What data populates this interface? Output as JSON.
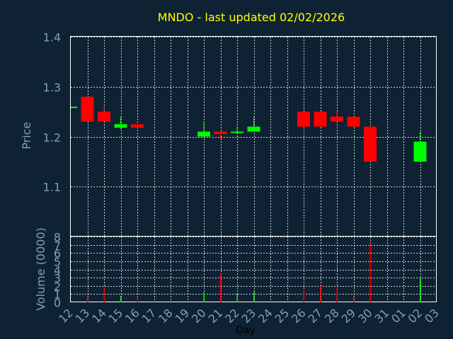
{
  "chart_data": [
    {
      "type": "candlestick",
      "title": "MNDO - last updated 02/02/2026",
      "xlabel": "",
      "ylabel": "Price",
      "ylim": [
        1.0,
        1.4
      ],
      "yticks": [
        "1.1",
        "1.2",
        "1.3",
        "1.4"
      ],
      "ytick_values": [
        1.1,
        1.2,
        1.3,
        1.4
      ],
      "grid": true,
      "title_color": "#ffff00",
      "label_color": "#7f9fbf",
      "up_color": "#00ff00",
      "down_color": "#ff0000",
      "candles": [
        {
          "slot": 0,
          "open": 1.26,
          "close": 1.26,
          "high": 1.26,
          "low": 1.26
        },
        {
          "slot": 1,
          "open": 1.28,
          "close": 1.23,
          "high": 1.28,
          "low": 1.23
        },
        {
          "slot": 2,
          "open": 1.25,
          "close": 1.23,
          "high": 1.26,
          "low": 1.23
        },
        {
          "slot": 3,
          "open": 1.218,
          "close": 1.225,
          "high": 1.24,
          "low": 1.215
        },
        {
          "slot": 4,
          "open": 1.225,
          "close": 1.218,
          "high": 1.225,
          "low": 1.21
        },
        {
          "slot": 8,
          "open": 1.2,
          "close": 1.21,
          "high": 1.23,
          "low": 1.2
        },
        {
          "slot": 9,
          "open": 1.21,
          "close": 1.205,
          "high": 1.21,
          "low": 1.195
        },
        {
          "slot": 10,
          "open": 1.208,
          "close": 1.21,
          "high": 1.22,
          "low": 1.205
        },
        {
          "slot": 11,
          "open": 1.21,
          "close": 1.22,
          "high": 1.24,
          "low": 1.21
        },
        {
          "slot": 14,
          "open": 1.25,
          "close": 1.22,
          "high": 1.25,
          "low": 1.22
        },
        {
          "slot": 15,
          "open": 1.25,
          "close": 1.22,
          "high": 1.25,
          "low": 1.22
        },
        {
          "slot": 16,
          "open": 1.24,
          "close": 1.23,
          "high": 1.25,
          "low": 1.23
        },
        {
          "slot": 17,
          "open": 1.24,
          "close": 1.22,
          "high": 1.24,
          "low": 1.22
        },
        {
          "slot": 18,
          "open": 1.22,
          "close": 1.15,
          "high": 1.22,
          "low": 1.15
        },
        {
          "slot": 21,
          "open": 1.15,
          "close": 1.19,
          "high": 1.21,
          "low": 1.15
        }
      ]
    },
    {
      "type": "bar",
      "xlabel": "Day",
      "ylabel": "Volume (0000)",
      "ylim": [
        0,
        8
      ],
      "yticks": [
        "0",
        "1",
        "2",
        "3",
        "4",
        "5",
        "6",
        "7",
        "8"
      ],
      "ytick_values": [
        0,
        1,
        2,
        3,
        4,
        5,
        6,
        7,
        8
      ],
      "grid": true,
      "categories": [
        "12",
        "13",
        "14",
        "15",
        "16",
        "17",
        "18",
        "19",
        "20",
        "21",
        "22",
        "23",
        "24",
        "25",
        "26",
        "27",
        "28",
        "29",
        "30",
        "31",
        "01",
        "02",
        "03"
      ],
      "bars": [
        {
          "slot": 1,
          "value": 1.0,
          "color": "#ff0000"
        },
        {
          "slot": 2,
          "value": 1.8,
          "color": "#ff0000"
        },
        {
          "slot": 3,
          "value": 0.8,
          "color": "#00ff00"
        },
        {
          "slot": 4,
          "value": 0.7,
          "color": "#ff0000"
        },
        {
          "slot": 8,
          "value": 1.2,
          "color": "#00ff00"
        },
        {
          "slot": 9,
          "value": 3.5,
          "color": "#ff0000"
        },
        {
          "slot": 10,
          "value": 1.0,
          "color": "#00ff00"
        },
        {
          "slot": 11,
          "value": 1.3,
          "color": "#00ff00"
        },
        {
          "slot": 14,
          "value": 1.5,
          "color": "#ff0000"
        },
        {
          "slot": 15,
          "value": 2.0,
          "color": "#ff0000"
        },
        {
          "slot": 16,
          "value": 1.8,
          "color": "#ff0000"
        },
        {
          "slot": 17,
          "value": 1.0,
          "color": "#ff0000"
        },
        {
          "slot": 18,
          "value": 7.2,
          "color": "#ff0000"
        },
        {
          "slot": 21,
          "value": 3.0,
          "color": "#00ff00"
        }
      ]
    }
  ]
}
